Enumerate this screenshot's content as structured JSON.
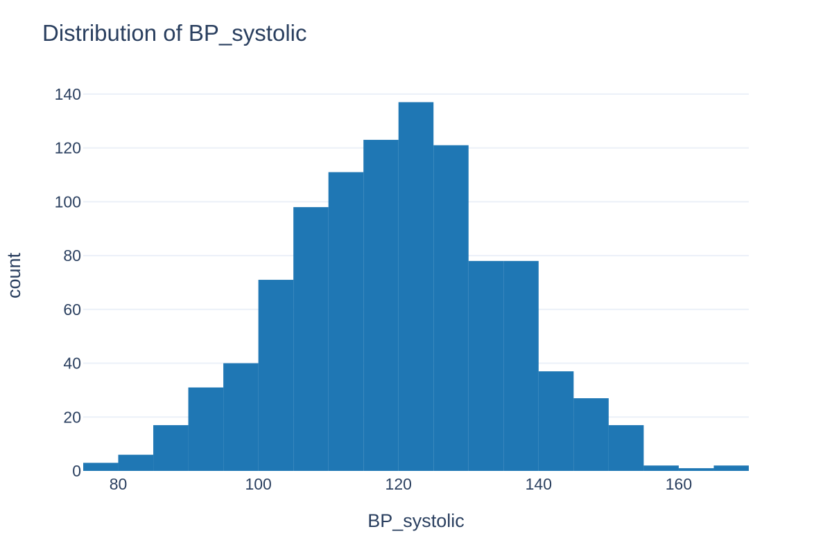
{
  "chart_data": {
    "type": "bar",
    "title": "Distribution of BP_systolic",
    "xlabel": "BP_systolic",
    "ylabel": "count",
    "xlim": [
      75,
      170
    ],
    "ylim": [
      0,
      150
    ],
    "xticks": [
      80,
      100,
      120,
      140,
      160
    ],
    "yticks": [
      0,
      20,
      40,
      60,
      80,
      100,
      120,
      140
    ],
    "bin_width": 5,
    "bins": [
      {
        "start": 75,
        "end": 80,
        "count": 3
      },
      {
        "start": 80,
        "end": 85,
        "count": 6
      },
      {
        "start": 85,
        "end": 90,
        "count": 17
      },
      {
        "start": 90,
        "end": 95,
        "count": 31
      },
      {
        "start": 95,
        "end": 100,
        "count": 40
      },
      {
        "start": 100,
        "end": 105,
        "count": 71
      },
      {
        "start": 105,
        "end": 110,
        "count": 98
      },
      {
        "start": 110,
        "end": 115,
        "count": 111
      },
      {
        "start": 115,
        "end": 120,
        "count": 123
      },
      {
        "start": 120,
        "end": 125,
        "count": 137
      },
      {
        "start": 125,
        "end": 130,
        "count": 121
      },
      {
        "start": 130,
        "end": 135,
        "count": 78
      },
      {
        "start": 135,
        "end": 140,
        "count": 78
      },
      {
        "start": 140,
        "end": 145,
        "count": 37
      },
      {
        "start": 145,
        "end": 150,
        "count": 27
      },
      {
        "start": 150,
        "end": 155,
        "count": 17
      },
      {
        "start": 155,
        "end": 160,
        "count": 2
      },
      {
        "start": 160,
        "end": 165,
        "count": 1
      },
      {
        "start": 165,
        "end": 170,
        "count": 2
      }
    ],
    "bar_color": "#1f77b4",
    "grid": true,
    "grid_color": "#ebf0f8",
    "text_color": "#2a3f5f"
  }
}
